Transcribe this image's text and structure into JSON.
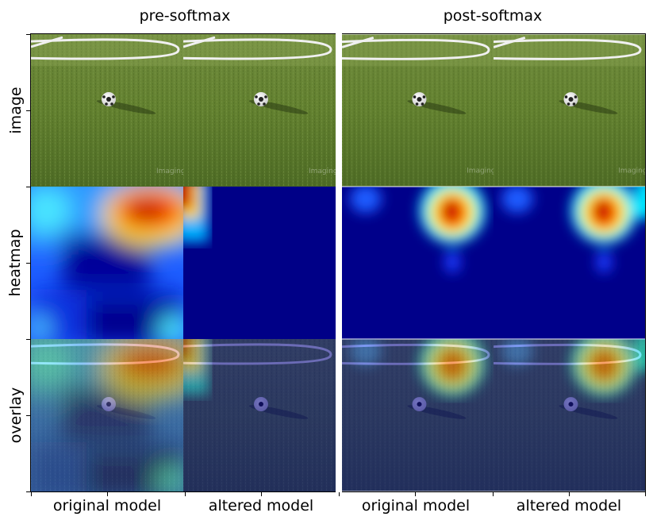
{
  "titles": {
    "pre": "pre-softmax",
    "post": "post-softmax"
  },
  "row_labels": {
    "image": "image",
    "heatmap": "heatmap",
    "overlay": "overlay"
  },
  "column_labels": {
    "c1": "original model",
    "c2": "altered model",
    "c3": "original model",
    "c4": "altered model"
  },
  "watermark": "Imaging"
}
